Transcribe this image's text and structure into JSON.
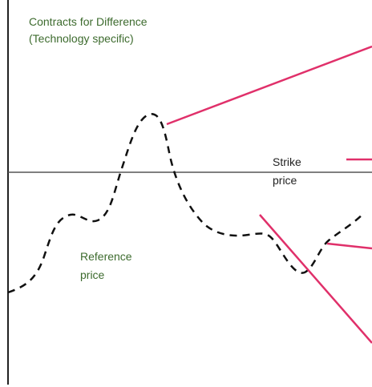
{
  "title": {
    "line1": "Contracts for Difference",
    "line2": "(Technology specific)"
  },
  "labels": [
    {
      "name": "strike",
      "lines": [
        "Strike",
        "price"
      ]
    },
    {
      "name": "reference",
      "lines": [
        "Reference",
        "price"
      ]
    }
  ]
}
